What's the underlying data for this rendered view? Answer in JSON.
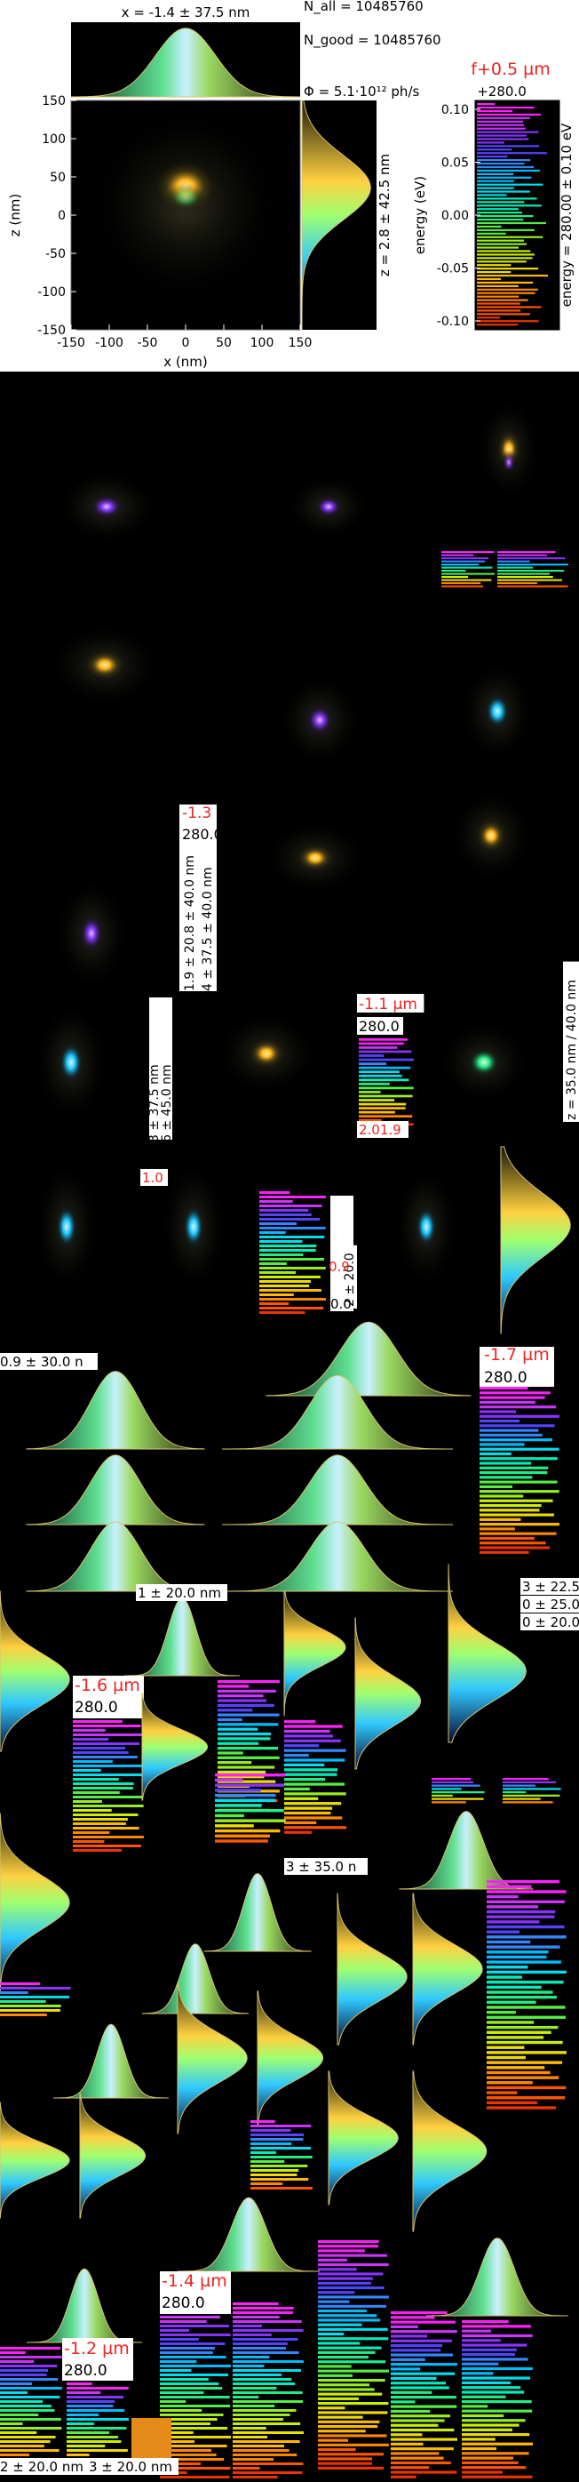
{
  "header": {
    "x_stat": "x = -1.4 ± 37.5 nm",
    "z_stat": "z = 2.8 ± 42.5 nm",
    "n_all": "N_all = 10485760",
    "n_good": "N_good = 10485760",
    "flux": "Φ = 5.1·10¹² ph/s",
    "focus_label": "f+0.5 µm",
    "energy_top": "+280.0",
    "energy_side": "energy = 280.00 ± 0.10 eV"
  },
  "main_chart": {
    "type": "heatmap",
    "xlabel": "x (nm)",
    "ylabel": "z (nm)",
    "xlim": [
      -150,
      150
    ],
    "ylim": [
      -150,
      150
    ],
    "xticks": [
      "-150",
      "-100",
      "-50",
      "0",
      "50",
      "100",
      "150"
    ],
    "yticks": [
      "150",
      "100",
      "50",
      "0",
      "-50",
      "-100",
      "-150"
    ],
    "spot_center": [
      0,
      20
    ]
  },
  "colorbar": {
    "ylabel": "energy (eV)",
    "ticks": [
      "0.10",
      "0.05",
      "0.00",
      "-0.05",
      "-0.10"
    ],
    "range": [
      -0.1,
      0.1
    ]
  },
  "chart_data": {
    "type": "heatmap",
    "xlabel": "x (nm)",
    "ylabel": "z (nm)",
    "xlim": [
      -150,
      150
    ],
    "ylim": [
      -150,
      150
    ],
    "x_profile_label": "x = -1.4 ± 37.5 nm",
    "z_profile_label": "z = 2.8 ± 42.5 nm",
    "colorbar_label": "energy (eV)",
    "colorbar_range": [
      -0.1,
      0.1
    ]
  },
  "overlay": {
    "focus_labels": [
      "-1.3",
      "-1.1 µm",
      "-1.7 µm",
      "-1.6 µm",
      "-1.4 µm",
      "-1.2 µm"
    ],
    "energy_280": "280.0",
    "stat_fragments": [
      "0.9 ± 30.0 n",
      "1 ± 20.0 nm",
      "3 ± 35.0 n",
      "2 ± 20.0 nm",
      "3 ± 20.0 nm",
      "z = 35.0 nm / 40.0 nm",
      "1.9 ± 20.8 ± 40.0 nm",
      "4 ± 37.5 ± 40.0 nm",
      "3 ± 37.5 nm",
      "6 ± 45.0 nm",
      "2 ± 20.0",
      "3 ± 22.5",
      "0 ± 25.0",
      "0 ± 20.0"
    ],
    "small_values": [
      "2.01.9",
      "1.0",
      "0.9",
      "0.0"
    ]
  }
}
